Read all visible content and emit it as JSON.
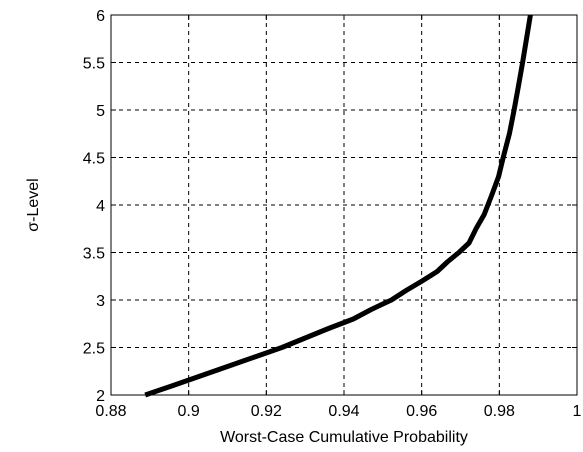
{
  "chart_data": {
    "type": "line",
    "title": "",
    "xlabel": "Worst-Case Cumulative Probability",
    "ylabel": "σ-Level",
    "xlim": [
      0.88,
      1.0
    ],
    "ylim": [
      2,
      6
    ],
    "grid": true,
    "x_ticks": [
      0.88,
      0.9,
      0.92,
      0.94,
      0.96,
      0.98,
      1.0
    ],
    "x_tick_labels": [
      "0.88",
      "0.9",
      "0.92",
      "0.94",
      "0.96",
      "0.98",
      "1"
    ],
    "y_ticks": [
      2,
      2.5,
      3,
      3.5,
      4,
      4.5,
      5,
      5.5,
      6
    ],
    "y_tick_labels": [
      "2",
      "2.5",
      "3",
      "3.5",
      "4",
      "4.5",
      "5",
      "5.5",
      "6"
    ],
    "series": [
      {
        "color": "#000000",
        "x": [
          0.8888,
          0.896,
          0.903,
          0.91,
          0.917,
          0.924,
          0.93,
          0.936,
          0.9424,
          0.947,
          0.9522,
          0.956,
          0.9601,
          0.964,
          0.9666,
          0.9696,
          0.9722,
          0.974,
          0.9761,
          0.978,
          0.9798,
          0.981,
          0.9826,
          0.9838,
          0.9849,
          0.986,
          0.987,
          0.988
        ],
        "y": [
          2.0,
          2.1,
          2.2,
          2.3,
          2.4,
          2.5,
          2.6,
          2.7,
          2.8,
          2.9,
          3.0,
          3.1,
          3.2,
          3.3,
          3.4,
          3.5,
          3.6,
          3.75,
          3.9,
          4.1,
          4.3,
          4.5,
          4.75,
          5.0,
          5.25,
          5.5,
          5.75,
          6.0
        ]
      }
    ]
  }
}
